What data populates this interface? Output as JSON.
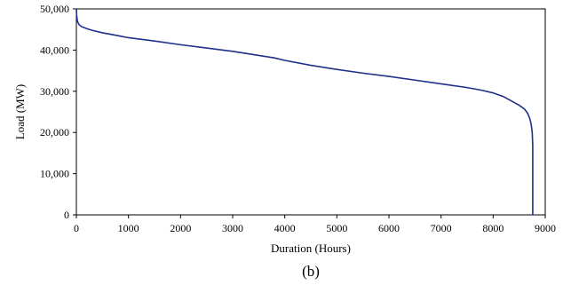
{
  "chart_data": {
    "type": "line",
    "title": "",
    "xlabel": "Duration (Hours)",
    "ylabel": "Load (MW)",
    "caption": "(b)",
    "xlim": [
      0,
      9000
    ],
    "ylim": [
      0,
      50000
    ],
    "x_ticks": [
      0,
      1000,
      2000,
      3000,
      4000,
      5000,
      6000,
      7000,
      8000,
      9000
    ],
    "x_tick_labels": [
      "0",
      "1000",
      "2000",
      "3000",
      "4000",
      "5000",
      "6000",
      "7000",
      "8000",
      "9000"
    ],
    "y_ticks": [
      0,
      10000,
      20000,
      30000,
      40000,
      50000
    ],
    "y_tick_labels": [
      "0",
      "10,000",
      "20,000",
      "30,000",
      "40,000",
      "50,000"
    ],
    "grid": false,
    "legend": "none",
    "line_color": "#1f2f8a",
    "series": [
      {
        "x": [
          0,
          5,
          20,
          50,
          100,
          200,
          300,
          500,
          800,
          1000,
          1500,
          2000,
          2500,
          3000,
          3500,
          3800,
          4000,
          4500,
          5000,
          5500,
          6000,
          6500,
          7000,
          7500,
          7800,
          8000,
          8200,
          8400,
          8500,
          8600,
          8660,
          8700,
          8730,
          8750,
          8760,
          8760
        ],
        "y": [
          50000,
          48500,
          47000,
          46200,
          45700,
          45200,
          44800,
          44200,
          43500,
          43000,
          42200,
          41300,
          40500,
          39700,
          38700,
          38100,
          37500,
          36300,
          35300,
          34400,
          33600,
          32700,
          31800,
          30900,
          30200,
          29600,
          28700,
          27300,
          26600,
          25700,
          24700,
          23500,
          22000,
          20000,
          17000,
          0
        ]
      }
    ]
  }
}
